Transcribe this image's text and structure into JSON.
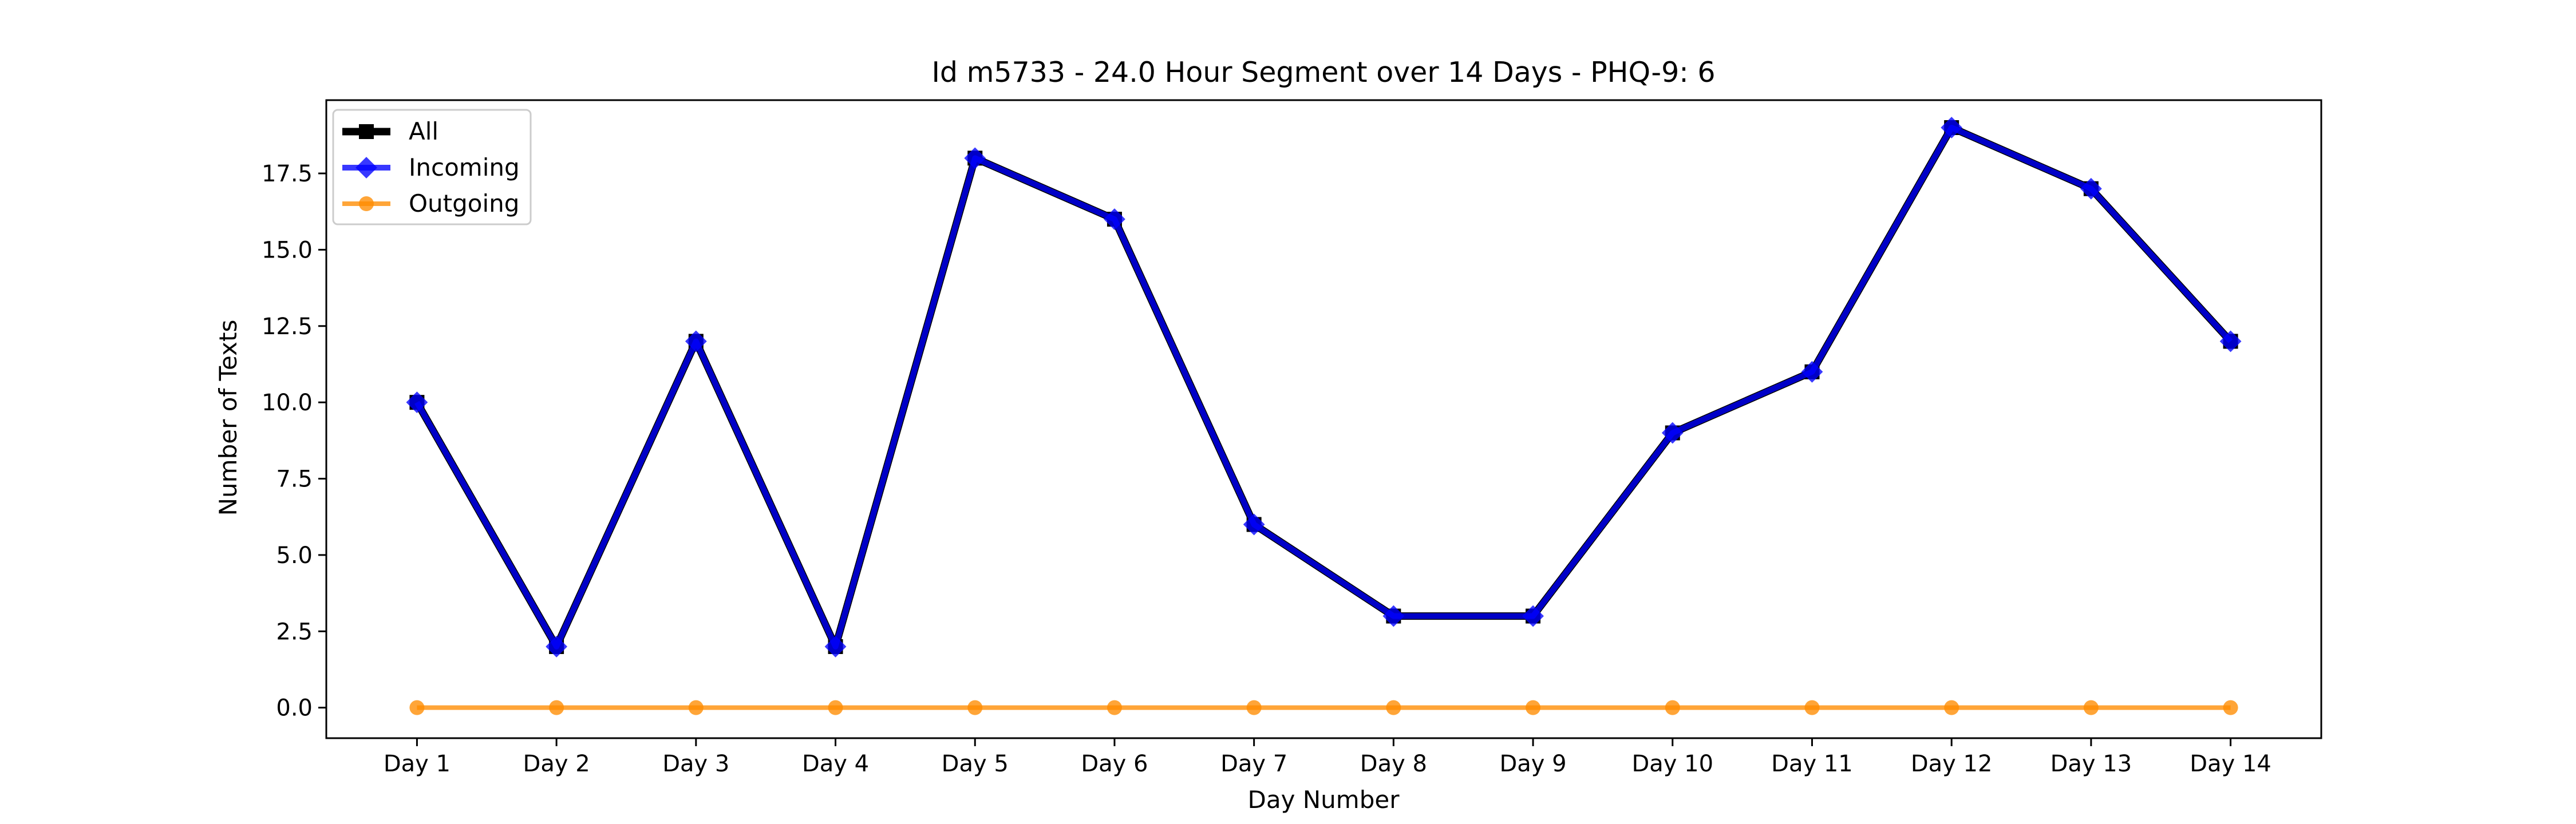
{
  "chart_data": {
    "type": "line",
    "title": "Id m5733 - 24.0 Hour Segment over 14 Days - PHQ-9: 6",
    "xlabel": "Day Number",
    "ylabel": "Number of Texts",
    "categories": [
      "Day 1",
      "Day 2",
      "Day 3",
      "Day 4",
      "Day 5",
      "Day 6",
      "Day 7",
      "Day 8",
      "Day 9",
      "Day 10",
      "Day 11",
      "Day 12",
      "Day 13",
      "Day 14"
    ],
    "ylim": [
      -1,
      19.9
    ],
    "yticks": [
      "0.0",
      "2.5",
      "5.0",
      "7.5",
      "10.0",
      "12.5",
      "15.0",
      "17.5"
    ],
    "legend_position": "top-left",
    "series": [
      {
        "name": "All",
        "color": "#000000",
        "marker": "square",
        "values": [
          10,
          2,
          12,
          2,
          18,
          16,
          6,
          3,
          3,
          9,
          11,
          19,
          17,
          12
        ]
      },
      {
        "name": "Incoming",
        "color": "#0000ff",
        "marker": "diamond",
        "values": [
          10,
          2,
          12,
          2,
          18,
          16,
          6,
          3,
          3,
          9,
          11,
          19,
          17,
          12
        ]
      },
      {
        "name": "Outgoing",
        "color": "#ff8c00",
        "marker": "circle",
        "values": [
          0,
          0,
          0,
          0,
          0,
          0,
          0,
          0,
          0,
          0,
          0,
          0,
          0,
          0
        ]
      }
    ]
  }
}
